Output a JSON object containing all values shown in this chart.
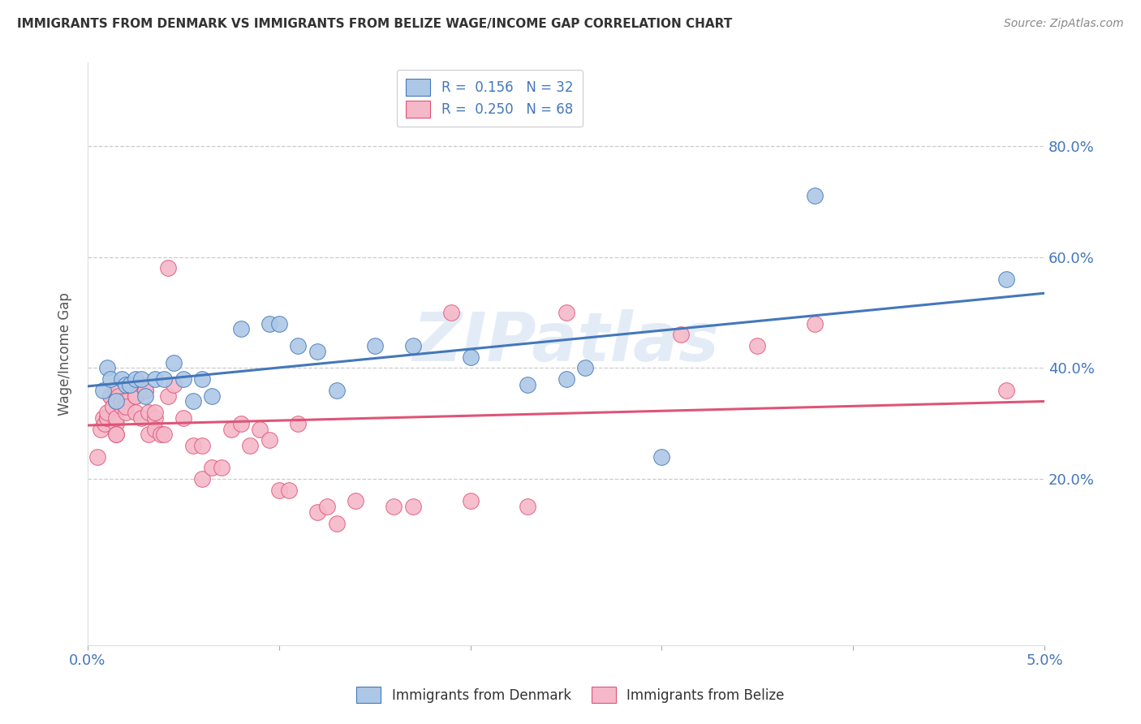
{
  "title": "IMMIGRANTS FROM DENMARK VS IMMIGRANTS FROM BELIZE WAGE/INCOME GAP CORRELATION CHART",
  "source": "Source: ZipAtlas.com",
  "ylabel": "Wage/Income Gap",
  "xlim": [
    0.0,
    0.05
  ],
  "ylim": [
    -0.1,
    0.95
  ],
  "yticks": [
    0.2,
    0.4,
    0.6,
    0.8
  ],
  "ytick_labels": [
    "20.0%",
    "40.0%",
    "60.0%",
    "80.0%"
  ],
  "xticks": [
    0.0,
    0.01,
    0.02,
    0.03,
    0.04,
    0.05
  ],
  "xtick_labels": [
    "0.0%",
    "",
    "",
    "",
    "",
    "5.0%"
  ],
  "denmark_color": "#adc8e6",
  "belize_color": "#f5b8c8",
  "denmark_line_color": "#4477bb",
  "belize_line_color": "#dd5577",
  "legend_denmark_label": "R =  0.156   N = 32",
  "legend_belize_label": "R =  0.250   N = 68",
  "watermark": "ZIPatlas",
  "denmark_scatter_x": [
    0.0008,
    0.001,
    0.0012,
    0.0015,
    0.0018,
    0.002,
    0.0022,
    0.0025,
    0.0028,
    0.003,
    0.0035,
    0.004,
    0.0045,
    0.005,
    0.0055,
    0.006,
    0.0065,
    0.008,
    0.0095,
    0.01,
    0.011,
    0.012,
    0.013,
    0.015,
    0.017,
    0.02,
    0.023,
    0.025,
    0.026,
    0.03,
    0.038,
    0.048
  ],
  "denmark_scatter_y": [
    0.36,
    0.4,
    0.38,
    0.34,
    0.38,
    0.37,
    0.37,
    0.38,
    0.38,
    0.35,
    0.38,
    0.38,
    0.41,
    0.38,
    0.34,
    0.38,
    0.35,
    0.47,
    0.48,
    0.48,
    0.44,
    0.43,
    0.36,
    0.44,
    0.44,
    0.42,
    0.37,
    0.38,
    0.4,
    0.24,
    0.71,
    0.56
  ],
  "belize_scatter_x": [
    0.0005,
    0.0007,
    0.0008,
    0.0009,
    0.001,
    0.001,
    0.001,
    0.0012,
    0.0012,
    0.0013,
    0.0015,
    0.0015,
    0.0015,
    0.0015,
    0.0015,
    0.0015,
    0.0016,
    0.0018,
    0.0018,
    0.002,
    0.002,
    0.002,
    0.0022,
    0.0025,
    0.0025,
    0.0025,
    0.0028,
    0.0028,
    0.003,
    0.003,
    0.0032,
    0.0032,
    0.0035,
    0.0035,
    0.0035,
    0.0038,
    0.004,
    0.0042,
    0.0042,
    0.0045,
    0.005,
    0.0055,
    0.006,
    0.006,
    0.0065,
    0.007,
    0.0075,
    0.008,
    0.0085,
    0.009,
    0.0095,
    0.01,
    0.0105,
    0.011,
    0.012,
    0.0125,
    0.013,
    0.014,
    0.016,
    0.017,
    0.019,
    0.02,
    0.023,
    0.025,
    0.031,
    0.035,
    0.038,
    0.048
  ],
  "belize_scatter_y": [
    0.24,
    0.29,
    0.31,
    0.3,
    0.31,
    0.31,
    0.32,
    0.35,
    0.35,
    0.33,
    0.34,
    0.3,
    0.31,
    0.28,
    0.28,
    0.36,
    0.35,
    0.33,
    0.34,
    0.34,
    0.32,
    0.33,
    0.37,
    0.35,
    0.35,
    0.32,
    0.37,
    0.31,
    0.36,
    0.36,
    0.28,
    0.32,
    0.31,
    0.32,
    0.29,
    0.28,
    0.28,
    0.58,
    0.35,
    0.37,
    0.31,
    0.26,
    0.26,
    0.2,
    0.22,
    0.22,
    0.29,
    0.3,
    0.26,
    0.29,
    0.27,
    0.18,
    0.18,
    0.3,
    0.14,
    0.15,
    0.12,
    0.16,
    0.15,
    0.15,
    0.5,
    0.16,
    0.15,
    0.5,
    0.46,
    0.44,
    0.48,
    0.36
  ],
  "background_color": "#ffffff",
  "grid_color": "#cccccc",
  "title_color": "#333333",
  "axis_label_color": "#555555",
  "tick_color": "#4477bb",
  "bottom_legend_denmark": "Immigrants from Denmark",
  "bottom_legend_belize": "Immigrants from Belize"
}
